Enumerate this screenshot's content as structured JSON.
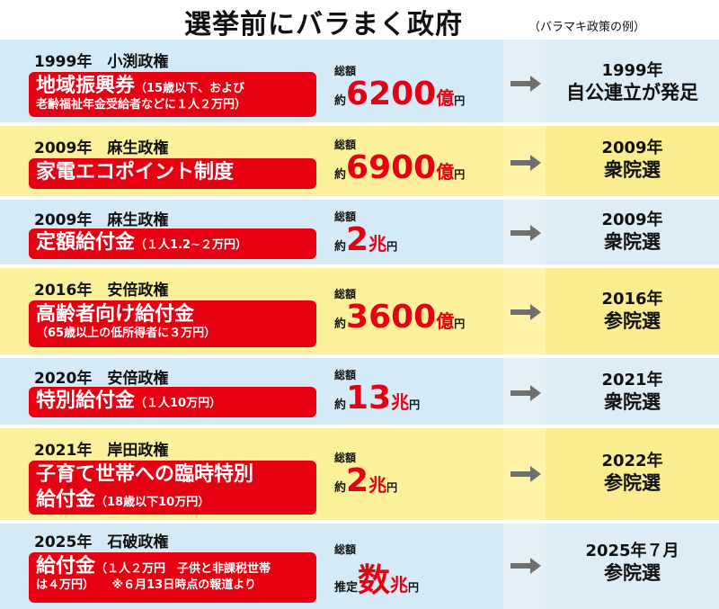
{
  "title": "選挙前にバラまく政府",
  "subtitle": "（バラマキ政策の例）",
  "rows": [
    {
      "period": "1999年　小渕政権",
      "policy": "地域振興券",
      "note1": "（15歳以下、および",
      "note2": "老齢福祉年金受給者などに１人２万円）",
      "total_label": "総額",
      "prefix": "約",
      "number": "6200",
      "unit": "億",
      "yen": "円",
      "election_year": "1999年",
      "election_event": "自公連立が発足"
    },
    {
      "period": "2009年　麻生政権",
      "policy": "家電エコポイント制度",
      "total_label": "総額",
      "prefix": "約",
      "number": "6900",
      "unit": "億",
      "yen": "円",
      "election_year": "2009年",
      "election_event": "衆院選"
    },
    {
      "period": "2009年　麻生政権",
      "policy": "定額給付金",
      "note1": "（１人1.2~２万円）",
      "total_label": "総額",
      "prefix": "約",
      "number": "2",
      "unit": "兆",
      "yen": "円",
      "election_year": "2009年",
      "election_event": "衆院選"
    },
    {
      "period": "2016年　安倍政権",
      "policy": "高齢者向け給付金",
      "note2": "（65歳以上の低所得者に３万円）",
      "total_label": "総額",
      "prefix": "約",
      "number": "3600",
      "unit": "億",
      "yen": "円",
      "election_year": "2016年",
      "election_event": "参院選"
    },
    {
      "period": "2020年　安倍政権",
      "policy": "特別給付金",
      "note1": "（１人10万円）",
      "total_label": "総額",
      "prefix": "約",
      "number": "13",
      "unit": "兆",
      "yen": "円",
      "election_year": "2021年",
      "election_event": "衆院選"
    },
    {
      "period": "2021年　岸田政権",
      "policy": "子育て世帯への臨時特別",
      "policy2": "給付金",
      "note1": "（18歳以下10万円）",
      "total_label": "総額",
      "prefix": "約",
      "number": "2",
      "unit": "兆",
      "yen": "円",
      "election_year": "2022年",
      "election_event": "参院選"
    },
    {
      "period": "2025年　石破政権",
      "policy": "給付金",
      "note1": "（１人２万円　子供と非課税世帯",
      "note2": "は４万円）　　※６月13日時点の報道より",
      "total_label": "総額",
      "prefix": "推定",
      "number": "数",
      "unit": "兆",
      "yen": "円",
      "election_year": "2025年７月",
      "election_event": "参院選"
    }
  ],
  "colors": {
    "red": "#e60012",
    "blue_band": "#d4eaf7",
    "yellow_band": "#fdf09a",
    "arrow": "#707070"
  }
}
